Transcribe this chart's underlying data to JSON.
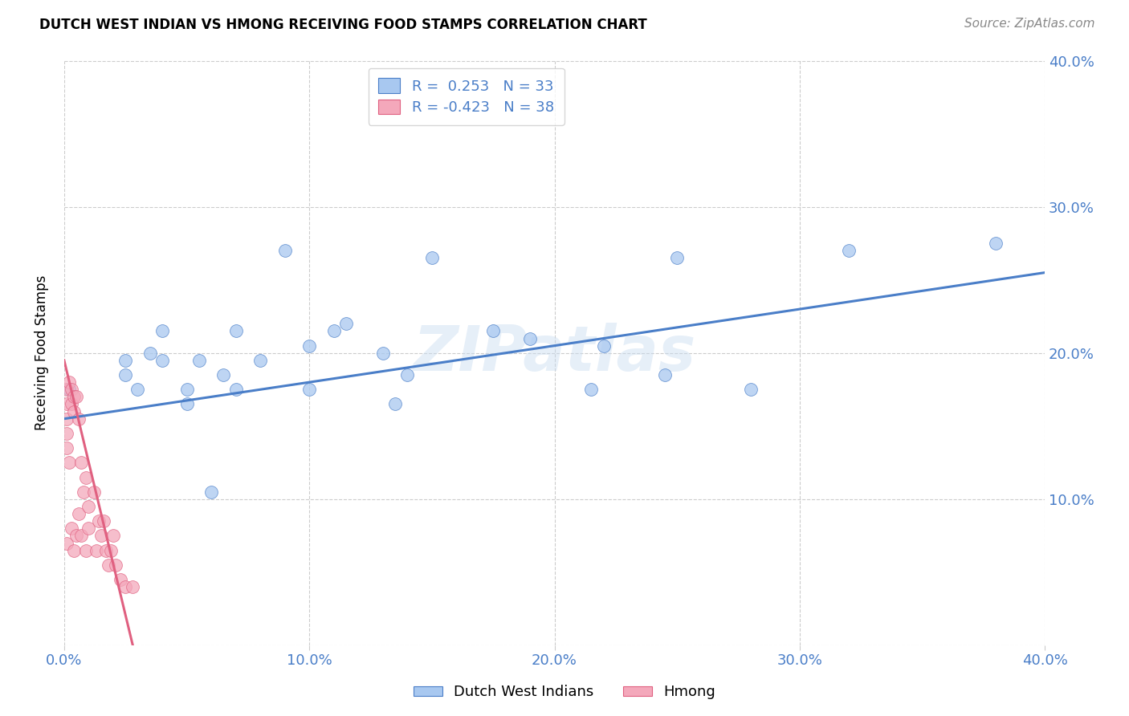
{
  "title": "DUTCH WEST INDIAN VS HMONG RECEIVING FOOD STAMPS CORRELATION CHART",
  "source": "Source: ZipAtlas.com",
  "ylabel": "Receiving Food Stamps",
  "xlim": [
    0.0,
    0.4
  ],
  "ylim": [
    0.0,
    0.4
  ],
  "xtick_labels": [
    "0.0%",
    "10.0%",
    "20.0%",
    "30.0%",
    "40.0%"
  ],
  "xtick_values": [
    0.0,
    0.1,
    0.2,
    0.3,
    0.4
  ],
  "ytick_labels_right": [
    "",
    "10.0%",
    "20.0%",
    "30.0%",
    "40.0%"
  ],
  "ytick_values": [
    0.0,
    0.1,
    0.2,
    0.3,
    0.4
  ],
  "legend_label1": "Dutch West Indians",
  "legend_label2": "Hmong",
  "R1": 0.253,
  "N1": 33,
  "R2": -0.423,
  "N2": 38,
  "color_blue": "#A8C8F0",
  "color_pink": "#F4A8BB",
  "line_blue": "#4A7EC8",
  "line_pink": "#E06080",
  "watermark": "ZIPatlas",
  "dutch_x": [
    0.002,
    0.025,
    0.025,
    0.03,
    0.035,
    0.04,
    0.04,
    0.05,
    0.05,
    0.055,
    0.06,
    0.065,
    0.07,
    0.07,
    0.08,
    0.09,
    0.1,
    0.1,
    0.11,
    0.115,
    0.13,
    0.135,
    0.14,
    0.15,
    0.175,
    0.19,
    0.215,
    0.22,
    0.245,
    0.25,
    0.28,
    0.32,
    0.38
  ],
  "dutch_y": [
    0.175,
    0.195,
    0.185,
    0.175,
    0.2,
    0.195,
    0.215,
    0.175,
    0.165,
    0.195,
    0.105,
    0.185,
    0.175,
    0.215,
    0.195,
    0.27,
    0.175,
    0.205,
    0.215,
    0.22,
    0.2,
    0.165,
    0.185,
    0.265,
    0.215,
    0.21,
    0.175,
    0.205,
    0.185,
    0.265,
    0.175,
    0.27,
    0.275
  ],
  "hmong_x": [
    0.001,
    0.001,
    0.001,
    0.001,
    0.001,
    0.001,
    0.002,
    0.002,
    0.003,
    0.003,
    0.003,
    0.004,
    0.004,
    0.004,
    0.005,
    0.005,
    0.006,
    0.006,
    0.007,
    0.007,
    0.008,
    0.009,
    0.009,
    0.01,
    0.01,
    0.012,
    0.013,
    0.014,
    0.015,
    0.016,
    0.017,
    0.018,
    0.019,
    0.02,
    0.021,
    0.023,
    0.025,
    0.028
  ],
  "hmong_y": [
    0.175,
    0.165,
    0.155,
    0.145,
    0.135,
    0.07,
    0.18,
    0.125,
    0.175,
    0.165,
    0.08,
    0.17,
    0.16,
    0.065,
    0.17,
    0.075,
    0.155,
    0.09,
    0.125,
    0.075,
    0.105,
    0.115,
    0.065,
    0.095,
    0.08,
    0.105,
    0.065,
    0.085,
    0.075,
    0.085,
    0.065,
    0.055,
    0.065,
    0.075,
    0.055,
    0.045,
    0.04,
    0.04
  ],
  "blue_line_x": [
    0.0,
    0.4
  ],
  "blue_line_y_start": 0.155,
  "blue_line_y_end": 0.255,
  "pink_line_x": [
    0.0,
    0.028
  ],
  "pink_line_y_start": 0.195,
  "pink_line_y_end": 0.0
}
